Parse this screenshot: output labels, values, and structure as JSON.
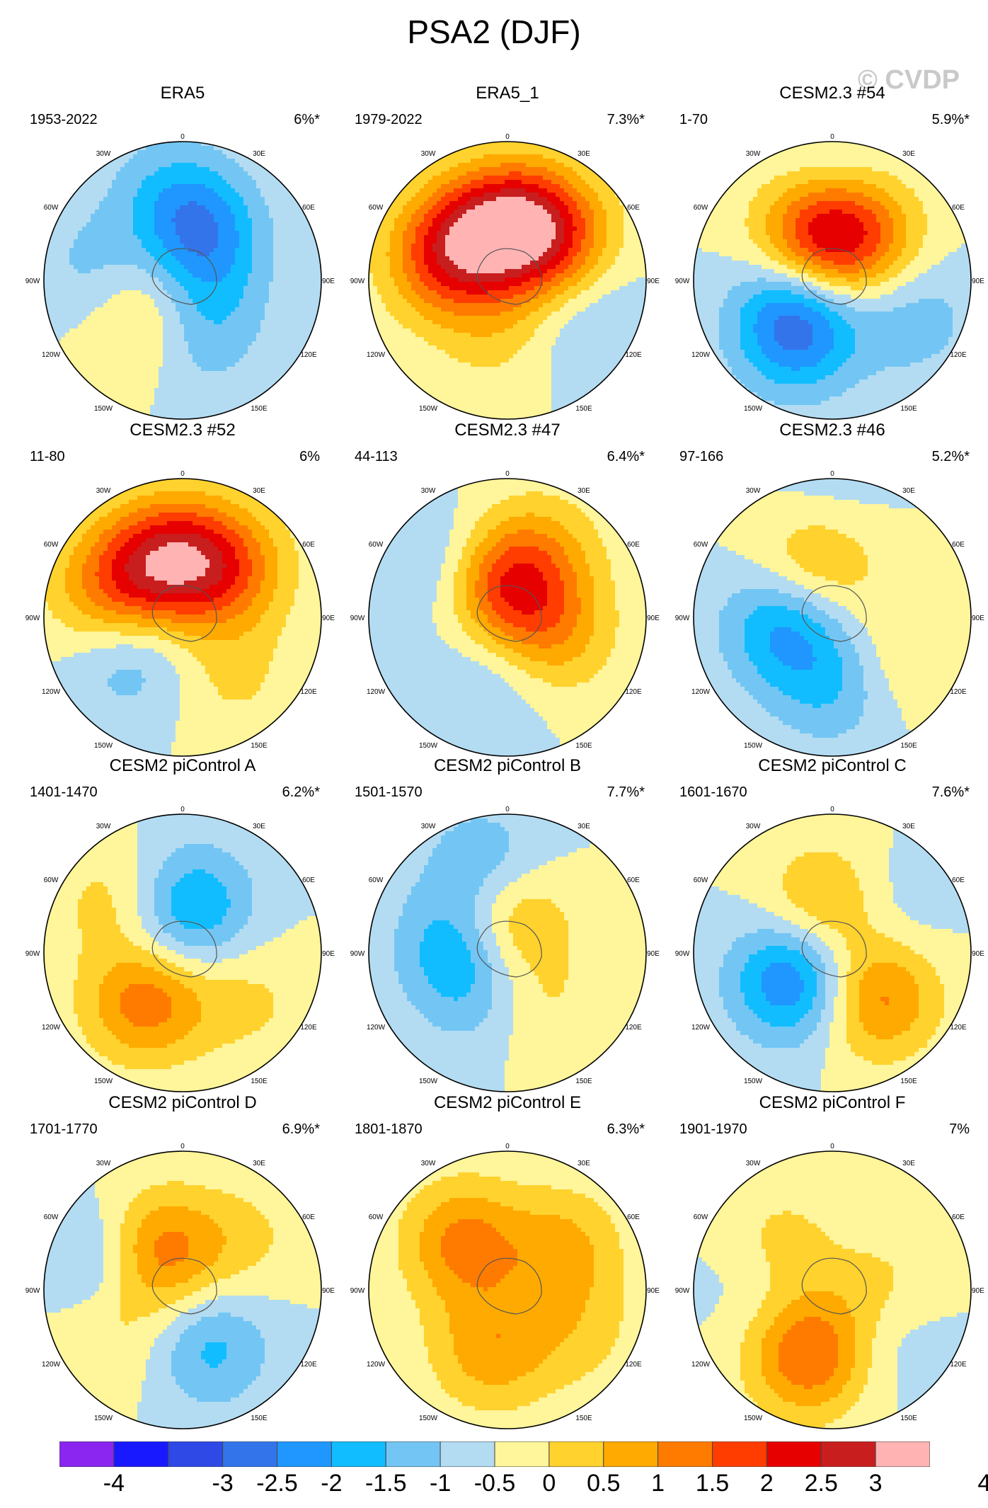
{
  "chart_data": {
    "type": "heatmap",
    "title": "PSA2 (DJF)",
    "watermark": "© CVDP",
    "panels": [
      {
        "name": "ERA5",
        "years": "1953-2022",
        "pct": "6%*",
        "blobs": [
          {
            "lon": -40,
            "colat": 36,
            "v": 1.0
          },
          {
            "lon": 10,
            "colat": 38,
            "v": -0.8
          },
          {
            "lon": -100,
            "colat": 48,
            "v": -1.2
          },
          {
            "lon": -110,
            "colat": 28,
            "v": 1.0
          },
          {
            "lon": 165,
            "colat": 32,
            "v": -2.0
          },
          {
            "lon": 60,
            "colat": 20,
            "v": -0.6
          },
          {
            "lon": -170,
            "colat": 60,
            "v": -0.6
          }
        ]
      },
      {
        "name": "ERA5_1",
        "years": "1979-2022",
        "pct": "7.3%*",
        "blobs": [
          {
            "lon": -140,
            "colat": 38,
            "v": 1.8
          },
          {
            "lon": 170,
            "colat": 38,
            "v": 2.1
          },
          {
            "lon": 135,
            "colat": 40,
            "v": 1.8
          },
          {
            "lon": -105,
            "colat": 44,
            "v": 1.5
          },
          {
            "lon": -10,
            "colat": 36,
            "v": 0.6
          },
          {
            "lon": 60,
            "colat": 62,
            "v": -0.6
          }
        ]
      },
      {
        "name": "CESM2.3 #54",
        "years": "1-70",
        "pct": "5.9%*",
        "blobs": [
          {
            "lon": -50,
            "colat": 32,
            "v": -1.6
          },
          {
            "lon": -30,
            "colat": 46,
            "v": -1.0
          },
          {
            "lon": -160,
            "colat": 32,
            "v": 2.2
          },
          {
            "lon": 150,
            "colat": 34,
            "v": 1.8
          },
          {
            "lon": 65,
            "colat": 58,
            "v": -0.8
          },
          {
            "lon": 180,
            "colat": 62,
            "v": -0.6
          }
        ]
      },
      {
        "name": "CESM2.3 #52",
        "years": "11-80",
        "pct": "6%",
        "blobs": [
          {
            "lon": -145,
            "colat": 42,
            "v": 1.7
          },
          {
            "lon": 175,
            "colat": 38,
            "v": 1.8
          },
          {
            "lon": 135,
            "colat": 44,
            "v": 1.4
          },
          {
            "lon": -105,
            "colat": 52,
            "v": 1.2
          },
          {
            "lon": -55,
            "colat": 42,
            "v": -1.0
          },
          {
            "lon": 40,
            "colat": 50,
            "v": 0.6
          }
        ]
      },
      {
        "name": "CESM2.3 #47",
        "years": "44-113",
        "pct": "6.4%*",
        "blobs": [
          {
            "lon": -178,
            "colat": 22,
            "v": 2.4
          },
          {
            "lon": 70,
            "colat": 32,
            "v": 1.2
          },
          {
            "lon": -130,
            "colat": 52,
            "v": -0.8
          },
          {
            "lon": -15,
            "colat": 40,
            "v": -0.6
          },
          {
            "lon": 150,
            "colat": 55,
            "v": 0.6
          }
        ]
      },
      {
        "name": "CESM2.3 #46",
        "years": "97-166",
        "pct": "5.2%*",
        "blobs": [
          {
            "lon": -80,
            "colat": 32,
            "v": -1.6
          },
          {
            "lon": -165,
            "colat": 40,
            "v": 1.5
          },
          {
            "lon": 0,
            "colat": 44,
            "v": -1.0
          },
          {
            "lon": 60,
            "colat": 48,
            "v": 0.6
          },
          {
            "lon": -175,
            "colat": 66,
            "v": -0.6
          }
        ]
      },
      {
        "name": "CESM2 piControl A",
        "years": "1401-1470",
        "pct": "6.2%*",
        "blobs": [
          {
            "lon": -40,
            "colat": 38,
            "v": 2.0
          },
          {
            "lon": 170,
            "colat": 30,
            "v": -1.6
          },
          {
            "lon": -125,
            "colat": 50,
            "v": 1.0
          },
          {
            "lon": 55,
            "colat": 52,
            "v": 0.6
          },
          {
            "lon": -95,
            "colat": 30,
            "v": -0.6
          }
        ]
      },
      {
        "name": "CESM2 piControl B",
        "years": "1501-1570",
        "pct": "7.7%*",
        "blobs": [
          {
            "lon": -100,
            "colat": 30,
            "v": -1.7
          },
          {
            "lon": -170,
            "colat": 22,
            "v": 1.9
          },
          {
            "lon": -165,
            "colat": 55,
            "v": -1.2
          },
          {
            "lon": 30,
            "colat": 40,
            "v": 0.6
          },
          {
            "lon": -30,
            "colat": 36,
            "v": -0.6
          }
        ]
      },
      {
        "name": "CESM2 piControl C",
        "years": "1601-1670",
        "pct": "7.6%*",
        "blobs": [
          {
            "lon": -55,
            "colat": 30,
            "v": -2.2
          },
          {
            "lon": 45,
            "colat": 40,
            "v": 1.8
          },
          {
            "lon": -175,
            "colat": 30,
            "v": 1.4
          },
          {
            "lon": 130,
            "colat": 42,
            "v": -0.6
          }
        ]
      },
      {
        "name": "CESM2 piControl D",
        "years": "1701-1770",
        "pct": "6.9%*",
        "blobs": [
          {
            "lon": 25,
            "colat": 40,
            "v": -1.2
          },
          {
            "lon": -140,
            "colat": 30,
            "v": 2.2
          },
          {
            "lon": -110,
            "colat": 50,
            "v": -1.4
          },
          {
            "lon": -60,
            "colat": 52,
            "v": 0.7
          },
          {
            "lon": 130,
            "colat": 50,
            "v": 0.6
          }
        ]
      },
      {
        "name": "CESM2 piControl E",
        "years": "1801-1870",
        "pct": "6.3%*",
        "blobs": [
          {
            "lon": -15,
            "colat": 40,
            "v": 1.3
          },
          {
            "lon": -140,
            "colat": 40,
            "v": 1.9
          },
          {
            "lon": 130,
            "colat": 42,
            "v": 1.3
          },
          {
            "lon": 60,
            "colat": 55,
            "v": 0.6
          },
          {
            "lon": 180,
            "colat": 30,
            "v": -0.5
          }
        ]
      },
      {
        "name": "CESM2 piControl F",
        "years": "1901-1970",
        "pct": "7%",
        "blobs": [
          {
            "lon": -20,
            "colat": 44,
            "v": 2.1
          },
          {
            "lon": -135,
            "colat": 36,
            "v": 1.4
          },
          {
            "lon": 90,
            "colat": 30,
            "v": 0.8
          },
          {
            "lon": 50,
            "colat": 45,
            "v": -0.6
          },
          {
            "lon": -160,
            "colat": 28,
            "v": -0.6
          },
          {
            "lon": -95,
            "colat": 40,
            "v": -0.6
          }
        ]
      }
    ],
    "lon_labels": [
      "0",
      "30E",
      "60E",
      "90E",
      "120E",
      "150E",
      "180",
      "150W",
      "120W",
      "90W",
      "60W",
      "30W"
    ],
    "colorbar": {
      "levels": [
        -4,
        -3.5,
        -3,
        -2.5,
        -2,
        -1.5,
        -1,
        -0.5,
        0,
        0.5,
        1,
        1.5,
        2,
        2.5,
        3,
        3.5,
        4
      ],
      "tick_labels": [
        "-4",
        "-3",
        "-2.5",
        "-2",
        "-1.5",
        "-1",
        "-0.5",
        "0",
        "0.5",
        "1",
        "1.5",
        "2",
        "2.5",
        "3",
        "4"
      ],
      "colors": [
        "#8a26f0",
        "#1919ff",
        "#2e49e6",
        "#3374ea",
        "#1f97ff",
        "#12bdff",
        "#73c6f4",
        "#b3dcf2",
        "#fff59a",
        "#ffd22e",
        "#ffaa00",
        "#ff7b00",
        "#ff3d00",
        "#e60000",
        "#c81e1e",
        "#ffb3b3"
      ]
    }
  }
}
